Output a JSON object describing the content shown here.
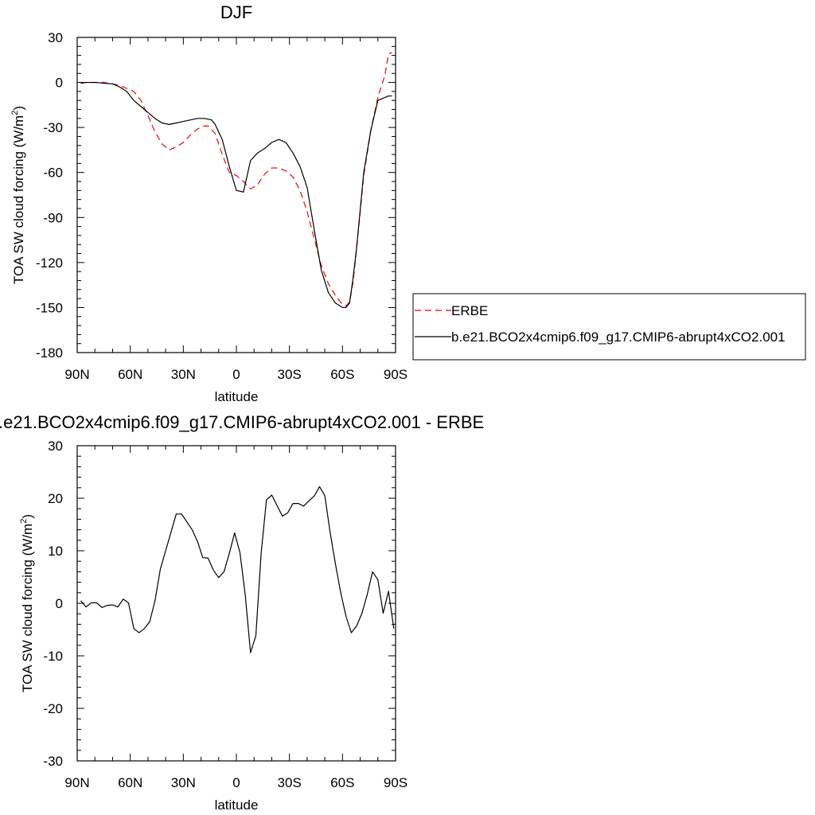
{
  "chart_data": [
    {
      "type": "line",
      "title": "DJF",
      "xlabel": "latitude",
      "ylabel": "TOA SW cloud forcing (W/m",
      "ylabel_sup": "2",
      "ylabel_tail": ")",
      "xlim": [
        90,
        -90
      ],
      "ylim": [
        -180,
        30
      ],
      "xticks": [
        90,
        60,
        30,
        0,
        -30,
        -60,
        -90
      ],
      "xtick_labels": [
        "90N",
        "60N",
        "30N",
        "0",
        "30S",
        "60S",
        "90S"
      ],
      "yticks": [
        30,
        0,
        -30,
        -60,
        -90,
        -120,
        -150,
        -180
      ],
      "ytick_labels": [
        "30",
        "0",
        "-30",
        "-60",
        "-90",
        "-120",
        "-150",
        "-180"
      ],
      "legend_position": "right",
      "series": [
        {
          "name": "ERBE",
          "color": "#e8282a",
          "dash": "dashed",
          "x": [
            88,
            85,
            80,
            75,
            70,
            66,
            62,
            58,
            54,
            50,
            46,
            42,
            38,
            34,
            30,
            26,
            22,
            18,
            16,
            12,
            8,
            4,
            0,
            -4,
            -8,
            -12,
            -16,
            -20,
            -24,
            -28,
            -32,
            -36,
            -40,
            -44,
            -48,
            -52,
            -56,
            -60,
            -62,
            -64,
            -66,
            -68,
            -72,
            -76,
            -80,
            -84,
            -86,
            -88
          ],
          "y": [
            -0.5,
            0,
            0,
            0,
            -1,
            -2,
            -4,
            -6,
            -12,
            -22,
            -33,
            -41,
            -45,
            -43,
            -40,
            -35,
            -31,
            -29,
            -29,
            -34,
            -48,
            -60,
            -62,
            -66,
            -71,
            -68,
            -61,
            -57,
            -57,
            -59,
            -63,
            -72,
            -86,
            -104,
            -122,
            -134,
            -142,
            -148,
            -149,
            -146,
            -133,
            -110,
            -62,
            -32,
            -10,
            5,
            19,
            20
          ]
        },
        {
          "name": "b.e21.BCO2x4cmip6.f09_g17.CMIP6-abrupt4xCO2.001",
          "color": "#000000",
          "dash": "solid",
          "x": [
            88,
            85,
            80,
            75,
            70,
            66,
            62,
            58,
            54,
            50,
            46,
            42,
            38,
            34,
            30,
            26,
            22,
            18,
            14,
            12,
            8,
            4,
            0,
            -4,
            -8,
            -12,
            -16,
            -20,
            -24,
            -28,
            -32,
            -36,
            -40,
            -44,
            -48,
            -52,
            -56,
            -60,
            -62,
            -64,
            -66,
            -68,
            -72,
            -76,
            -80,
            -84,
            -86,
            -88
          ],
          "y": [
            -0.5,
            0,
            0,
            -0.5,
            -1,
            -3,
            -6,
            -12,
            -16,
            -20,
            -24,
            -27,
            -28,
            -27,
            -26,
            -25,
            -24,
            -24,
            -25,
            -28,
            -38,
            -56,
            -72,
            -73,
            -52,
            -47,
            -44,
            -40,
            -38,
            -40,
            -47,
            -56,
            -70,
            -98,
            -125,
            -140,
            -147,
            -150,
            -150,
            -147,
            -130,
            -110,
            -60,
            -32,
            -12,
            -10,
            -9,
            -9
          ]
        }
      ]
    },
    {
      "type": "line",
      "title": "b.e21.BCO2x4cmip6.f09_g17.CMIP6-abrupt4xCO2.001 - ERBE",
      "xlabel": "latitude",
      "ylabel": "TOA SW cloud forcing (W/m",
      "ylabel_sup": "2",
      "ylabel_tail": ")",
      "xlim": [
        90,
        -90
      ],
      "ylim": [
        -30,
        30
      ],
      "xticks": [
        90,
        60,
        30,
        0,
        -30,
        -60,
        -90
      ],
      "xtick_labels": [
        "90N",
        "60N",
        "30N",
        "0",
        "30S",
        "60S",
        "90S"
      ],
      "yticks": [
        30,
        20,
        10,
        0,
        -10,
        -20,
        -30
      ],
      "ytick_labels": [
        "30",
        "20",
        "10",
        "0",
        "-10",
        "-20",
        "-30"
      ],
      "series": [
        {
          "color": "#000000",
          "dash": "solid",
          "x": [
            88,
            85,
            82,
            79,
            76,
            73,
            70,
            67,
            64,
            61,
            58,
            55,
            52,
            49,
            46,
            43,
            40,
            37,
            34,
            31,
            28,
            25,
            22,
            19,
            16,
            13,
            10,
            7,
            4,
            1,
            -2,
            -5,
            -8,
            -11,
            -14,
            -17,
            -20,
            -23,
            -26,
            -29,
            -32,
            -35,
            -38,
            -41,
            -44,
            -47,
            -50,
            -53,
            -56,
            -59,
            -62,
            -65,
            -68,
            -71,
            -74,
            -77,
            -80,
            -83,
            -86,
            -89
          ],
          "y": [
            0.5,
            -0.7,
            0.1,
            0.1,
            -0.8,
            -0.4,
            -0.3,
            -0.7,
            0.8,
            0.1,
            -4.8,
            -5.6,
            -4.8,
            -3.5,
            0.5,
            6.5,
            10,
            13.5,
            17,
            17,
            15.5,
            14,
            11.8,
            8.7,
            8.6,
            6.3,
            4.9,
            6,
            9.5,
            13.4,
            9.7,
            1.6,
            -9.4,
            -6.2,
            9.5,
            19.7,
            20.6,
            18.6,
            16.6,
            17.2,
            19,
            19,
            18.5,
            19.5,
            20.4,
            22.2,
            20.5,
            13.5,
            7.5,
            2,
            -2.5,
            -5.6,
            -4.3,
            -1.9,
            1.7,
            6,
            4.5,
            -1.9,
            2.3,
            -4.8
          ]
        }
      ]
    }
  ]
}
